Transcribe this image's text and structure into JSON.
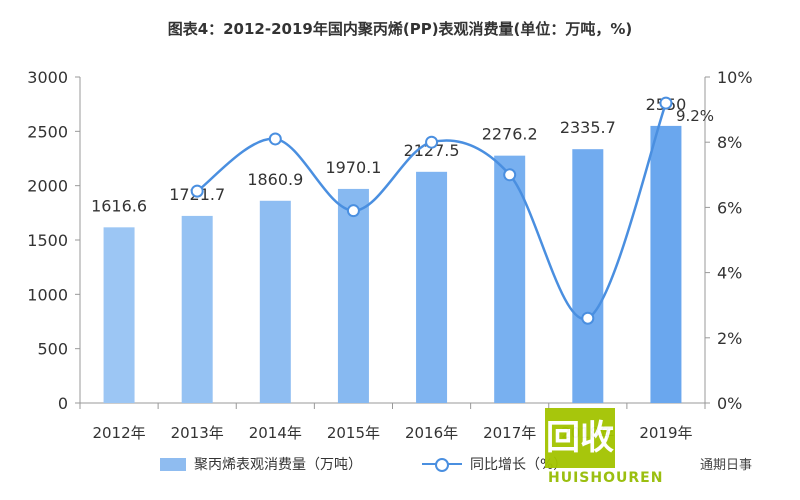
{
  "title": "图表4：2012-2019年国内聚丙烯(PP)表观消费量(单位：万吨，%)",
  "watermark": {
    "logo_text": "回收",
    "brand": "HUISHOUREN",
    "corner": "通期日事"
  },
  "chart_data": {
    "type": "bar",
    "categories": [
      "2012年",
      "2013年",
      "2014年",
      "2015年",
      "2016年",
      "2017年",
      "2018年",
      "2019年"
    ],
    "series": [
      {
        "name": "聚丙烯表观消费量（万吨）",
        "type": "bar",
        "axis": "left",
        "values": [
          1616.6,
          1721.7,
          1860.9,
          1970.1,
          2127.5,
          2276.2,
          2335.7,
          2550
        ],
        "labels": [
          "1616.6",
          "1721.7",
          "1860.9",
          "1970.1",
          "2127.5",
          "2276.2",
          "2335.7",
          "2550"
        ]
      },
      {
        "name": "同比增长（%）",
        "type": "line",
        "axis": "right",
        "values": [
          null,
          6.5,
          8.1,
          5.9,
          8.0,
          7.0,
          2.6,
          9.2
        ],
        "labels": [
          "",
          "",
          "",
          "",
          "",
          "",
          "",
          "9.2%"
        ]
      }
    ],
    "y_left": {
      "min": 0,
      "max": 3000,
      "ticks": [
        "0",
        "500",
        "1000",
        "1500",
        "2000",
        "2500",
        "3000"
      ]
    },
    "y_right": {
      "min": 0,
      "max": 10,
      "ticks": [
        "0%",
        "2%",
        "4%",
        "6%",
        "8%",
        "10%"
      ]
    },
    "legend_position": "bottom",
    "colors": {
      "bar_light": "#9cc6f4",
      "bar_dark": "#6aa7ee",
      "line": "#4a8fe0",
      "axis": "#999999"
    }
  }
}
